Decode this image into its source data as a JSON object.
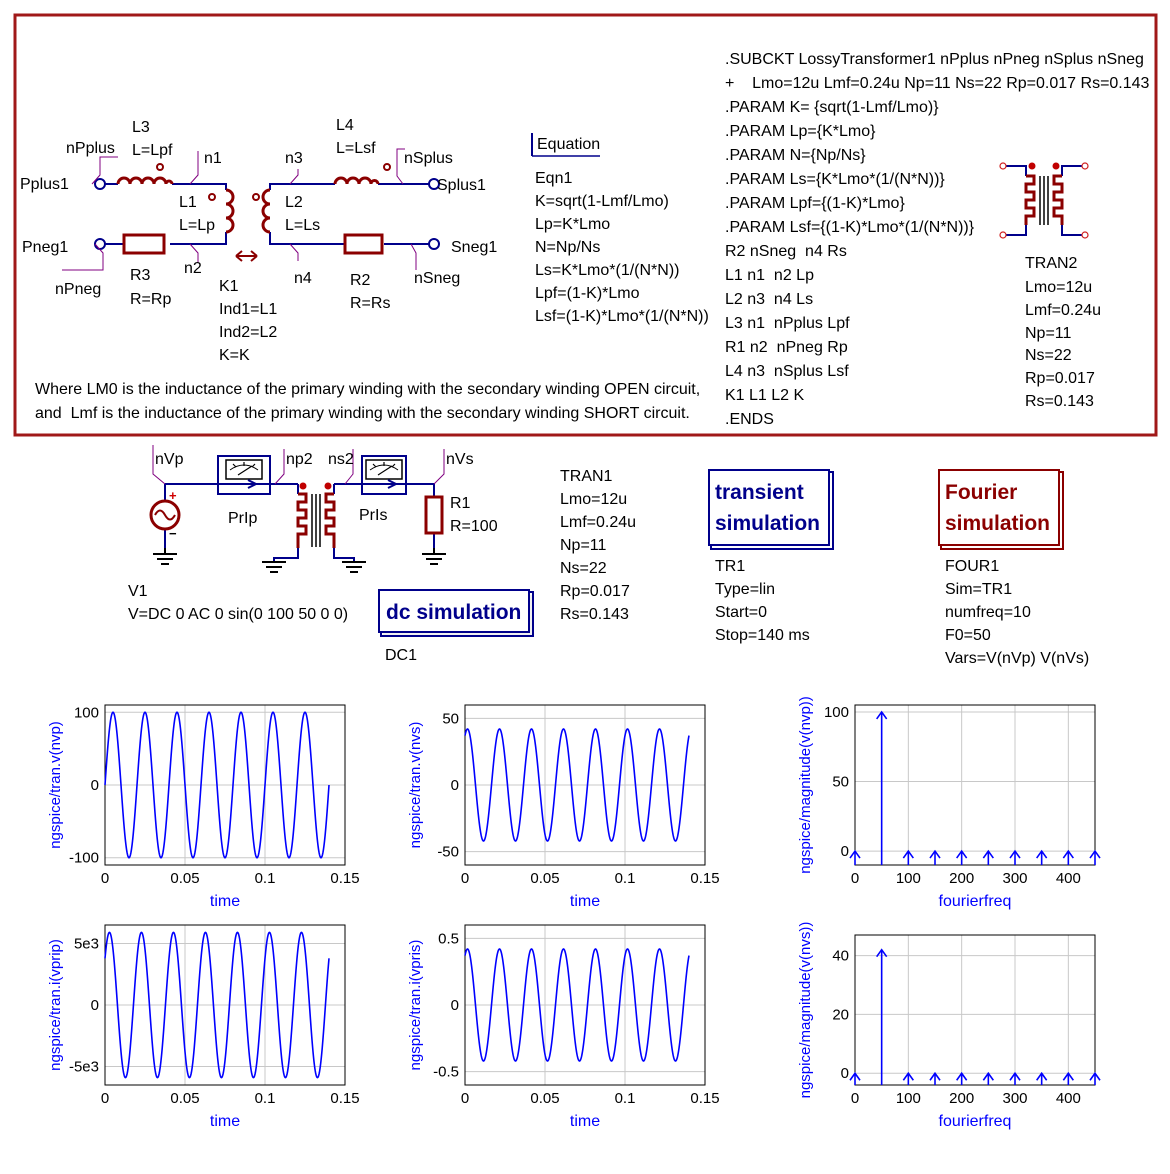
{
  "subckt_box": {
    "ports": {
      "pplus": "Pplus1",
      "pneg": "Pneg1",
      "splus": "Splus1",
      "sneg": "Sneg1"
    },
    "node_labels": {
      "npplus": "nPplus",
      "npneg": "nPneg",
      "n1": "n1",
      "n2": "n2",
      "n3": "n3",
      "n4": "n4",
      "nsplus": "nSplus",
      "nsneg": "nSneg"
    },
    "L3": {
      "name": "L3",
      "value": "L=Lpf"
    },
    "L4": {
      "name": "L4",
      "value": "L=Lsf"
    },
    "L1": {
      "name": "L1",
      "value": "L=Lp"
    },
    "L2": {
      "name": "L2",
      "value": "L=Ls"
    },
    "R3": {
      "name": "R3",
      "value": "R=Rp"
    },
    "R2": {
      "name": "R2",
      "value": "R=Rs"
    },
    "K1": {
      "name": "K1",
      "lines": [
        "Ind1=L1",
        "Ind2=L2",
        "K=K"
      ]
    },
    "equation": {
      "header": "Equation",
      "name": "Eqn1",
      "lines": [
        "K=sqrt(1-Lmf/Lmo)",
        "Lp=K*Lmo",
        "N=Np/Ns",
        "Ls=K*Lmo*(1/(N*N))",
        "Lpf=(1-K)*Lmo",
        "Lsf=(1-K)*Lmo*(1/(N*N))"
      ]
    },
    "netlist": [
      ".SUBCKT LossyTransformer1 nPplus nPneg nSplus nSneg",
      "+    Lmo=12u Lmf=0.24u Np=11 Ns=22 Rp=0.017 Rs=0.143",
      ".PARAM K= {sqrt(1-Lmf/Lmo)}",
      ".PARAM Lp={K*Lmo}",
      ".PARAM N={Np/Ns}",
      ".PARAM Ls={K*Lmo*(1/(N*N))}",
      ".PARAM Lpf={(1-K)*Lmo}",
      ".PARAM Lsf={(1-K)*Lmo*(1/(N*N))}",
      "R2 nSneg  n4 Rs",
      "L1 n1  n2 Lp",
      "L2 n3  n4 Ls",
      "L3 n1  nPplus Lpf",
      "R1 n2  nPneg Rp",
      "L4 n3  nSplus Lsf",
      "K1 L1 L2 K",
      ".ENDS"
    ],
    "tran2": {
      "name": "TRAN2",
      "lines": [
        "Lmo=12u",
        "Lmf=0.24u",
        "Np=11",
        "Ns=22",
        "Rp=0.017",
        "Rs=0.143"
      ]
    },
    "note": [
      "Where LM0 is the inductance of the primary winding with the secondary winding OPEN circuit,",
      "and  Lmf is the inductance of the primary winding with the secondary winding SHORT circuit."
    ]
  },
  "test_circuit": {
    "nodes": {
      "nvp": "nVp",
      "np2": "np2",
      "ns2": "ns2",
      "nvs": "nVs"
    },
    "probes": {
      "prip": "PrIp",
      "pris": "PrIs"
    },
    "R1": {
      "name": "R1",
      "value": "R=100"
    },
    "V1": {
      "name": "V1",
      "value": "V=DC 0 AC 0 sin(0 100 50 0 0)"
    },
    "tran1": {
      "name": "TRAN1",
      "lines": [
        "Lmo=12u",
        "Lmf=0.24u",
        "Np=11",
        "Ns=22",
        "Rp=0.017",
        "Rs=0.143"
      ]
    },
    "dc_sim": {
      "title": "dc simulation",
      "name": "DC1"
    },
    "tr_sim": {
      "title1": "transient",
      "title2": "simulation",
      "name": "TR1",
      "lines": [
        "Type=lin",
        "Start=0",
        "Stop=140 ms"
      ]
    },
    "four_sim": {
      "title1": "Fourier",
      "title2": "simulation",
      "name": "FOUR1",
      "lines": [
        "Sim=TR1",
        "numfreq=10",
        "F0=50",
        "Vars=V(nVp) V(nVs)"
      ]
    }
  },
  "colors": {
    "frame": "#a01818",
    "wire": "#00008b",
    "device": "#8b0000",
    "trace": "#0000ff",
    "label_line": "#800080"
  },
  "chart_data": [
    {
      "type": "line",
      "ylabel": "ngspice/tran.v(nvp)",
      "xlabel": "time",
      "xlim": [
        0,
        0.15
      ],
      "ylim": [
        -110,
        110
      ],
      "xticks": [
        "0",
        "0.05",
        "0.1",
        "0.15"
      ],
      "yticks": [
        "-100",
        "0",
        "100"
      ],
      "ytick_values": [
        -100,
        0,
        100
      ],
      "series": [
        {
          "amplitude": 100,
          "frequency_hz": 50,
          "phase_deg": 0,
          "offset": 0,
          "x_end": 0.14
        }
      ]
    },
    {
      "type": "line",
      "ylabel": "ngspice/tran.v(nvs)",
      "xlabel": "time",
      "xlim": [
        0,
        0.15
      ],
      "ylim": [
        -60,
        60
      ],
      "xticks": [
        "0",
        "0.05",
        "0.1",
        "0.15"
      ],
      "yticks": [
        "-50",
        "0",
        "50"
      ],
      "ytick_values": [
        -50,
        0,
        50
      ],
      "series": [
        {
          "amplitude": 42,
          "frequency_hz": 50,
          "phase_deg": 62,
          "offset": 0,
          "x_end": 0.14
        }
      ]
    },
    {
      "type": "bar",
      "ylabel": "ngspice/magnitude(v(nvp))",
      "xlabel": "fourierfreq",
      "xlim": [
        0,
        450
      ],
      "ylim": [
        -10,
        105
      ],
      "xticks": [
        "0",
        "100",
        "200",
        "300",
        "400"
      ],
      "yticks": [
        "0",
        "50",
        "100"
      ],
      "ytick_values": [
        0,
        50,
        100
      ],
      "x": [
        0,
        50,
        100,
        150,
        200,
        250,
        300,
        350,
        400,
        450
      ],
      "values": [
        0,
        100,
        0,
        0,
        0,
        0,
        0,
        0,
        0,
        0
      ]
    },
    {
      "type": "line",
      "ylabel": "ngspice/tran.i(vprip)",
      "xlabel": "time",
      "xlim": [
        0,
        0.15
      ],
      "ylim": [
        -6500,
        6500
      ],
      "xticks": [
        "0",
        "0.05",
        "0.1",
        "0.15"
      ],
      "yticks": [
        "-5e3",
        "0",
        "5e3"
      ],
      "ytick_values": [
        -5000,
        0,
        5000
      ],
      "series": [
        {
          "amplitude": 5900,
          "frequency_hz": 50,
          "phase_deg": 40,
          "offset": 0,
          "x_end": 0.14
        }
      ]
    },
    {
      "type": "line",
      "ylabel": "ngspice/tran.i(vpris)",
      "xlabel": "time",
      "xlim": [
        0,
        0.15
      ],
      "ylim": [
        -0.6,
        0.6
      ],
      "xticks": [
        "0",
        "0.05",
        "0.1",
        "0.15"
      ],
      "yticks": [
        "-0.5",
        "0",
        "0.5"
      ],
      "ytick_values": [
        -0.5,
        0,
        0.5
      ],
      "series": [
        {
          "amplitude": 0.42,
          "frequency_hz": 50,
          "phase_deg": 62,
          "offset": 0,
          "x_end": 0.14
        }
      ]
    },
    {
      "type": "bar",
      "ylabel": "ngspice/magnitude(v(nvs))",
      "xlabel": "fourierfreq",
      "xlim": [
        0,
        450
      ],
      "ylim": [
        -4,
        47
      ],
      "xticks": [
        "0",
        "100",
        "200",
        "300",
        "400"
      ],
      "yticks": [
        "0",
        "20",
        "40"
      ],
      "ytick_values": [
        0,
        20,
        40
      ],
      "x": [
        0,
        50,
        100,
        150,
        200,
        250,
        300,
        350,
        400,
        450
      ],
      "values": [
        0,
        42,
        0,
        0,
        0,
        0,
        0,
        0,
        0,
        0
      ]
    }
  ]
}
